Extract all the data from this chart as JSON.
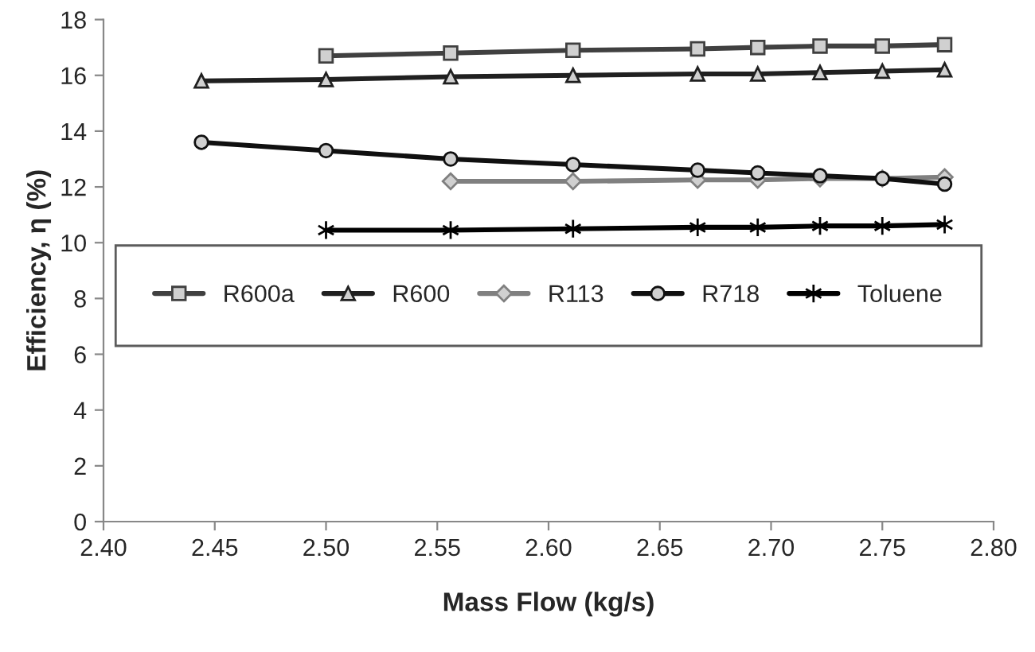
{
  "chart_data": {
    "type": "line",
    "xlabel": "Mass Flow (kg/s)",
    "ylabel": "Efficiency, η (%)",
    "xlim": [
      2.4,
      2.8
    ],
    "xticks": [
      {
        "value": 2.4,
        "label": "2.40"
      },
      {
        "value": 2.45,
        "label": "2.45"
      },
      {
        "value": 2.5,
        "label": "2.50"
      },
      {
        "value": 2.55,
        "label": "2.55"
      },
      {
        "value": 2.6,
        "label": "2.60"
      },
      {
        "value": 2.65,
        "label": "2.65"
      },
      {
        "value": 2.7,
        "label": "2.70"
      },
      {
        "value": 2.75,
        "label": "2.75"
      },
      {
        "value": 2.8,
        "label": "2.80"
      }
    ],
    "ylim": [
      0,
      18
    ],
    "yticks": [
      0,
      2,
      4,
      6,
      8,
      10,
      12,
      14,
      16,
      18
    ],
    "grid": false,
    "legend": "center",
    "x": [
      2.444,
      2.5,
      2.556,
      2.611,
      2.667,
      2.694,
      2.722,
      2.75,
      2.778
    ],
    "series": [
      {
        "name": "R600a",
        "color": "#404040",
        "marker": "square",
        "values": [
          null,
          16.7,
          16.8,
          16.9,
          16.95,
          17.0,
          17.05,
          17.05,
          17.1
        ]
      },
      {
        "name": "R600",
        "color": "#202020",
        "marker": "triangle",
        "values": [
          15.8,
          15.85,
          15.95,
          16.0,
          16.05,
          16.05,
          16.1,
          16.15,
          16.2
        ]
      },
      {
        "name": "R113",
        "color": "#808080",
        "marker": "diamond",
        "values": [
          null,
          null,
          12.2,
          12.2,
          12.25,
          12.25,
          12.3,
          12.3,
          12.35
        ]
      },
      {
        "name": "R718",
        "color": "#101010",
        "marker": "circle",
        "values": [
          13.6,
          13.3,
          13.0,
          12.8,
          12.6,
          12.5,
          12.4,
          12.3,
          12.1
        ]
      },
      {
        "name": "Toluene",
        "color": "#000000",
        "marker": "cross",
        "values": [
          null,
          10.45,
          10.45,
          10.5,
          10.55,
          10.55,
          10.6,
          10.6,
          10.65
        ]
      }
    ]
  }
}
